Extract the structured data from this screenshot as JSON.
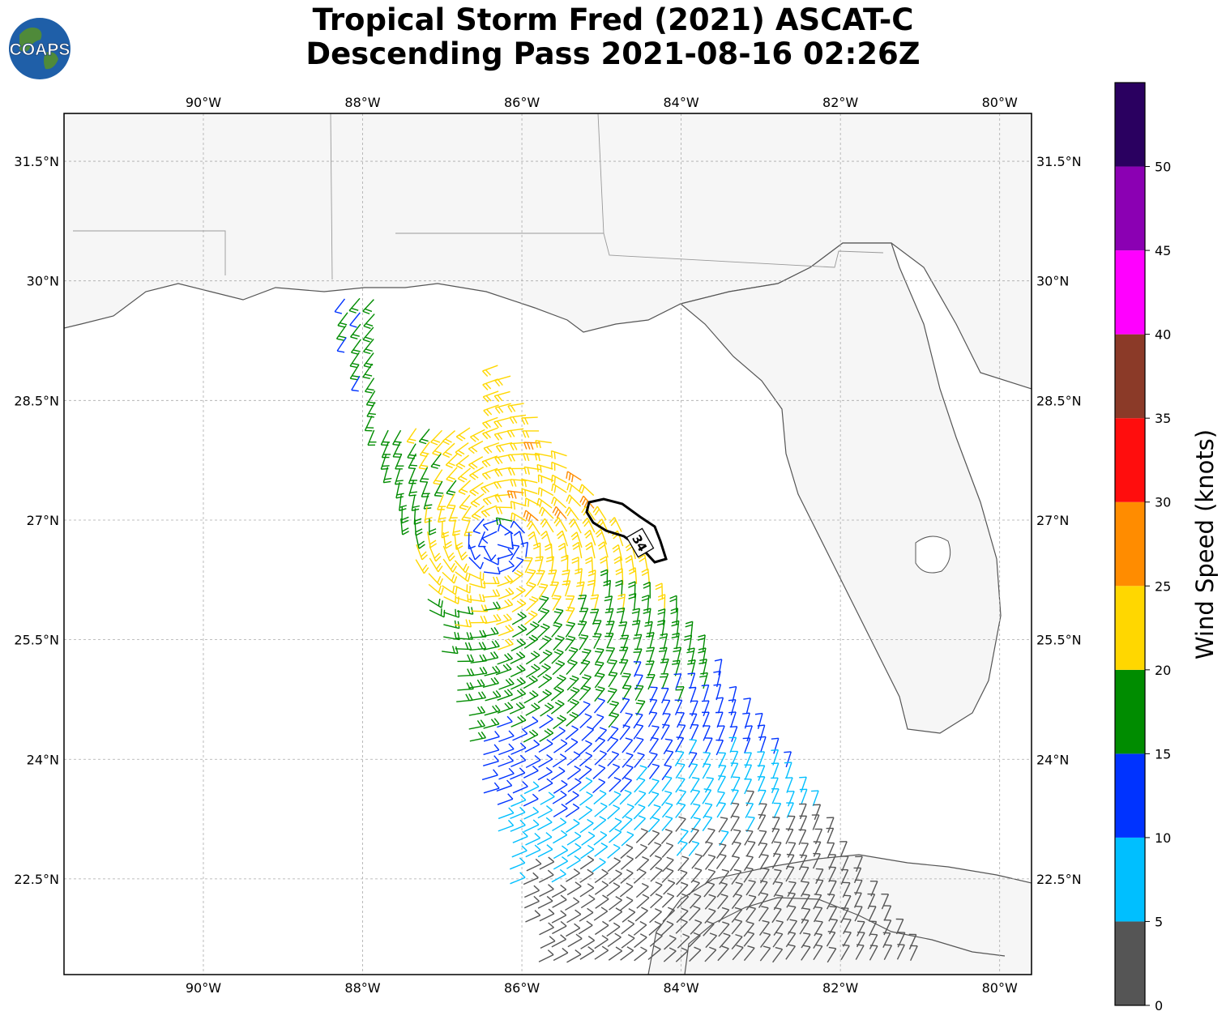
{
  "title": {
    "line1": "Tropical Storm Fred (2021) ASCAT-C",
    "line2": "Descending Pass 2021-08-16 02:26Z"
  },
  "logo": {
    "text": "COAPS"
  },
  "map": {
    "lon_range": [
      -91.75,
      -79.6
    ],
    "lat_range": [
      21.3,
      32.1
    ],
    "lon_ticks": [
      {
        "value": -90,
        "label": "90°W"
      },
      {
        "value": -88,
        "label": "88°W"
      },
      {
        "value": -86,
        "label": "86°W"
      },
      {
        "value": -84,
        "label": "84°W"
      },
      {
        "value": -82,
        "label": "82°W"
      },
      {
        "value": -80,
        "label": "80°W"
      }
    ],
    "lat_ticks": [
      {
        "value": 31.5,
        "label": "31.5°N"
      },
      {
        "value": 30,
        "label": "30°N"
      },
      {
        "value": 28.5,
        "label": "28.5°N"
      },
      {
        "value": 27,
        "label": "27°N"
      },
      {
        "value": 25.5,
        "label": "25.5°N"
      },
      {
        "value": 24,
        "label": "24°N"
      },
      {
        "value": 22.5,
        "label": "22.5°N"
      }
    ],
    "gridlines": true,
    "contour_label": "34",
    "storm_center": {
      "lon": -86.3,
      "lat": 26.7
    }
  },
  "colorbar": {
    "label": "Wind Speed (knots)",
    "ticks": [
      "0",
      "5",
      "10",
      "15",
      "20",
      "25",
      "30",
      "35",
      "40",
      "45",
      "50"
    ],
    "bins": [
      {
        "min": 0,
        "max": 5,
        "color": "#555555"
      },
      {
        "min": 5,
        "max": 10,
        "color": "#00bfff"
      },
      {
        "min": 10,
        "max": 15,
        "color": "#0033ff"
      },
      {
        "min": 15,
        "max": 20,
        "color": "#008c00"
      },
      {
        "min": 20,
        "max": 25,
        "color": "#ffd700"
      },
      {
        "min": 25,
        "max": 30,
        "color": "#ff8c00"
      },
      {
        "min": 30,
        "max": 35,
        "color": "#ff0d0d"
      },
      {
        "min": 35,
        "max": 40,
        "color": "#8b3a28"
      },
      {
        "min": 40,
        "max": 45,
        "color": "#ff00ff"
      },
      {
        "min": 45,
        "max": 50,
        "color": "#8b00b3"
      },
      {
        "min": 50,
        "max": 55,
        "color": "#2a0060"
      }
    ]
  }
}
